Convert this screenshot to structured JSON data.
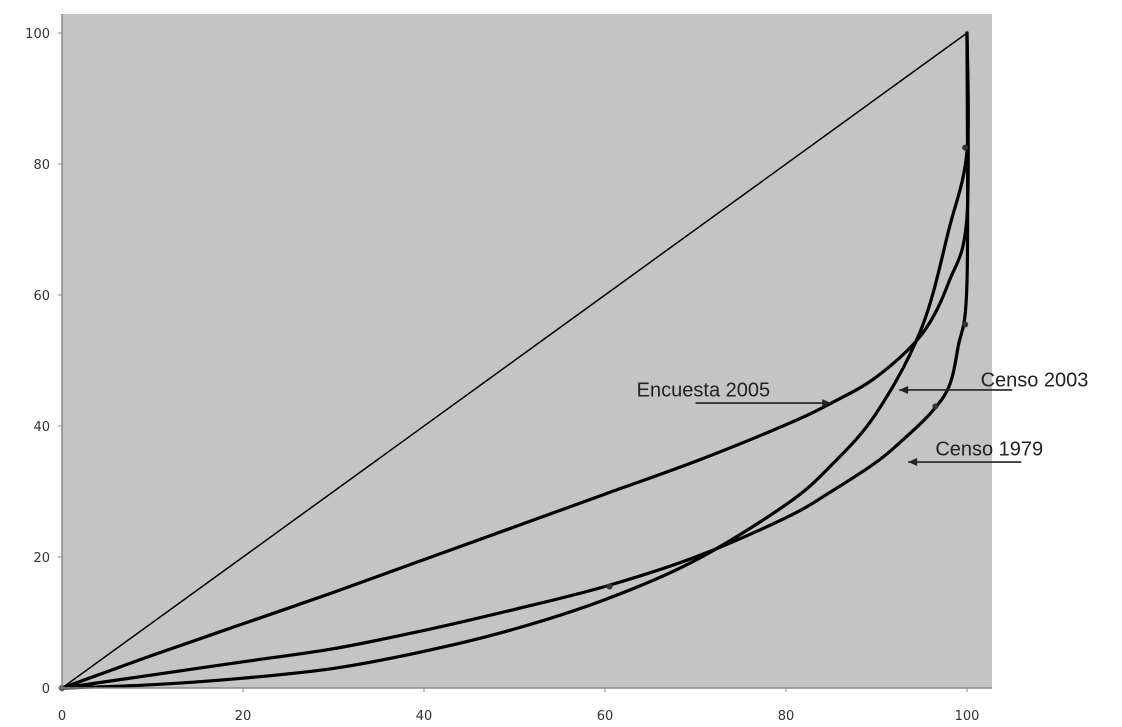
{
  "chart_data": {
    "type": "line",
    "title": "",
    "xlabel": "",
    "ylabel": "",
    "xlim": [
      0,
      103
    ],
    "ylim": [
      0,
      102
    ],
    "xticks": [
      0,
      20,
      40,
      60,
      80,
      100
    ],
    "yticks": [
      0,
      20,
      40,
      60,
      80,
      100
    ],
    "grid": false,
    "legend": "none",
    "colors": {
      "plot_background": "#c4c4c4",
      "line": "#000000",
      "axis": "#888888"
    },
    "series": [
      {
        "key": "equality",
        "x": [
          0,
          100
        ],
        "y": [
          0,
          100
        ]
      },
      {
        "key": "encuesta_2005",
        "x": [
          0,
          5,
          10,
          20,
          30,
          40,
          50,
          60,
          70,
          80,
          85,
          90,
          95,
          98,
          100,
          100
        ],
        "y": [
          0,
          2.5,
          5,
          9.8,
          14.6,
          19.6,
          24.6,
          29.6,
          34.6,
          40.2,
          43.5,
          47.5,
          54,
          62,
          72,
          100
        ]
      },
      {
        "key": "censo_2003",
        "x": [
          0,
          10,
          20,
          30,
          40,
          50,
          60,
          70,
          80,
          85,
          90,
          95,
          98,
          100,
          100
        ],
        "y": [
          0,
          0.5,
          1.5,
          3,
          5.6,
          9,
          13.5,
          19.5,
          28,
          34,
          42,
          55,
          70,
          82,
          100
        ]
      },
      {
        "key": "censo_1979",
        "x": [
          0,
          10,
          20,
          30,
          40,
          50,
          60,
          70,
          80,
          85,
          90,
          93,
          96,
          98,
          99,
          100,
          100
        ],
        "y": [
          0,
          2,
          4,
          6,
          8.8,
          12,
          15.5,
          20,
          26,
          30,
          34.5,
          38,
          42,
          46,
          52,
          62,
          100
        ]
      }
    ],
    "annotations": [
      {
        "key": "encuesta_2005",
        "text": "Encuesta 2005",
        "x": 63.5,
        "y": 44.5,
        "arrow_from": [
          70,
          43.5
        ],
        "arrow_to": [
          85,
          43.5
        ]
      },
      {
        "key": "censo_2003",
        "text": "Censo 2003",
        "x": 101.5,
        "y": 46,
        "arrow_from": [
          105,
          45.5
        ],
        "arrow_to": [
          92.5,
          45.5
        ]
      },
      {
        "key": "censo_1979",
        "text": "Censo 1979",
        "x": 96.5,
        "y": 35.5,
        "arrow_from": [
          106,
          34.5
        ],
        "arrow_to": [
          93.5,
          34.5
        ]
      }
    ],
    "markers": [
      {
        "x": 0,
        "y": 0
      },
      {
        "x": 60.5,
        "y": 15.5
      },
      {
        "x": 96.5,
        "y": 43
      },
      {
        "x": 99.8,
        "y": 55.5
      },
      {
        "x": 99.8,
        "y": 82.5
      }
    ]
  }
}
